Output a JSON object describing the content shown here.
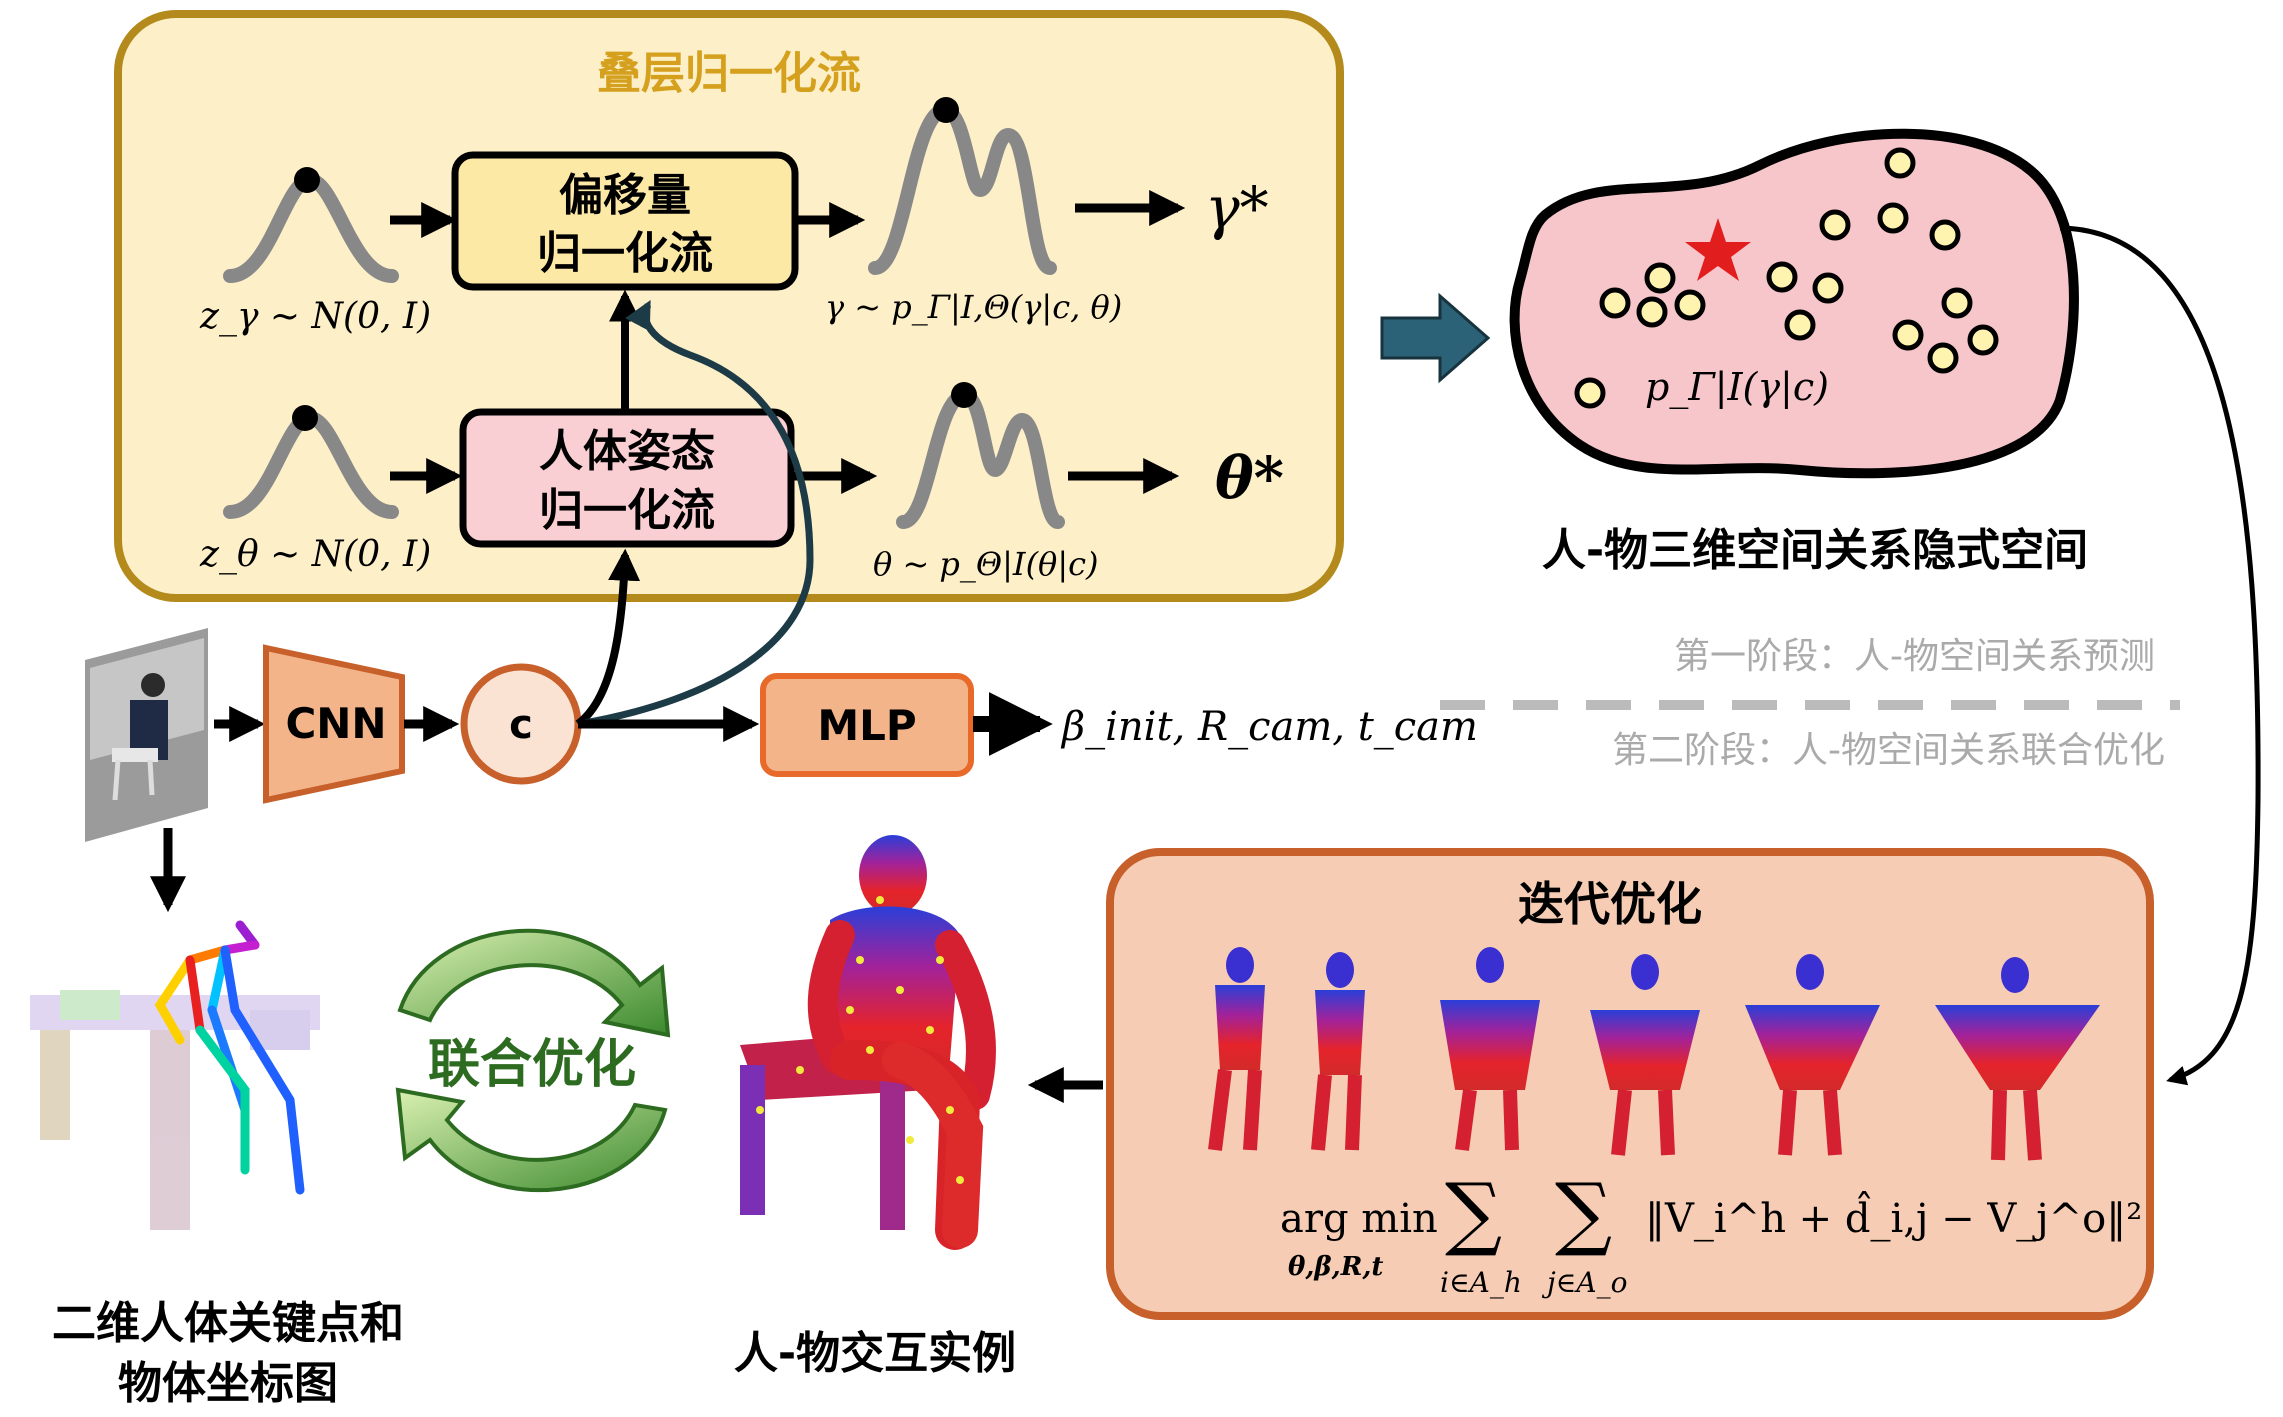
{
  "top_box": {
    "title": "叠层归一化流",
    "offset_flow": [
      "偏移量",
      "归一化流"
    ],
    "pose_flow": [
      "人体姿态",
      "归一化流"
    ],
    "z_gamma": "z_γ ~ N(0, I)",
    "z_theta": "z_θ ~ N(0, I)",
    "gamma_dist": "γ ~ p_Γ|I,Θ(γ|c, θ)",
    "theta_dist": "θ ~ p_Θ|I(θ|c)",
    "gamma_star": "γ*",
    "theta_star": "θ*"
  },
  "latent": {
    "label": "p_Γ|I(γ|c)",
    "caption": "人-物三维空间关系隐式空间"
  },
  "pipeline": {
    "cnn": "CNN",
    "c": "c",
    "mlp": "MLP",
    "mlp_out": "β_init, R_cam, t_cam"
  },
  "stages": {
    "stage1": "第一阶段：人-物空间关系预测",
    "stage2": "第二阶段：人-物空间关系联合优化"
  },
  "optim": {
    "title": "迭代优化",
    "formula_main": "arg min",
    "formula_sub": "θ,β,R,t",
    "formula_body": "‖V_i^h + d̂_i,j − V_j^o‖²",
    "sum1_sub": "i∈A_h",
    "sum2_sub": "j∈A_o"
  },
  "bottom": {
    "keypoints_caption": [
      "二维人体关键点和",
      "物体坐标图"
    ],
    "joint_opt": "联合优化",
    "instance_caption": "人-物交互实例"
  },
  "colors": {
    "top_box_fill": "#fdf0c8",
    "top_box_stroke": "#b48a1c",
    "offset_fill": "#fde9a6",
    "pose_fill": "#f9cfd3",
    "latent_fill": "#f7c6ca",
    "orange_fill": "#f4b48a",
    "mlp_stroke": "#e86a2a",
    "optim_fill": "#f6cdb4",
    "optim_stroke": "#c7602a",
    "dark_teal": "#1d3b46",
    "green": "#3c8a2e"
  }
}
